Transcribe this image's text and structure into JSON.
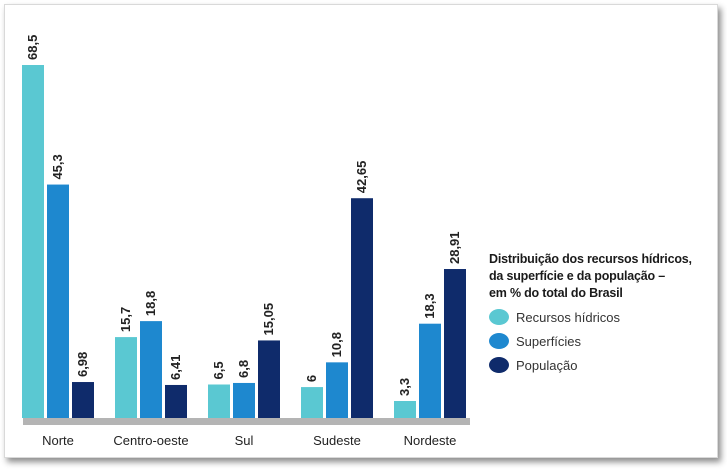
{
  "colors": {
    "recursos": "#5ac8d2",
    "superficies": "#1e88cf",
    "populacao": "#0f2b6b",
    "baseline": "#b4b4b4"
  },
  "legend": {
    "title_lines": [
      "Distribuição dos recursos hídricos,",
      "da superfície e da população –",
      "em % do total do Brasil"
    ],
    "items": [
      {
        "label": "Recursos hídricos",
        "color": "#5ac8d2"
      },
      {
        "label": "Superfícies",
        "color": "#1e88cf"
      },
      {
        "label": "População",
        "color": "#0f2b6b"
      }
    ]
  },
  "chart_data": {
    "type": "bar",
    "categories": [
      "Norte",
      "Centro-oeste",
      "Sul",
      "Sudeste",
      "Nordeste"
    ],
    "series": [
      {
        "name": "Recursos hídricos",
        "values": [
          68.5,
          15.7,
          6.5,
          6,
          3.3
        ],
        "labels": [
          "68,5",
          "15,7",
          "6,5",
          "6",
          "3,3"
        ],
        "color": "#5ac8d2"
      },
      {
        "name": "Superfícies",
        "values": [
          45.3,
          18.8,
          6.8,
          10.8,
          18.3
        ],
        "labels": [
          "45,3",
          "18,8",
          "6,8",
          "10,8",
          "18,3"
        ],
        "color": "#1e88cf"
      },
      {
        "name": "População",
        "values": [
          6.98,
          6.41,
          15.05,
          42.65,
          28.91
        ],
        "labels": [
          "6,98",
          "6,41",
          "15,05",
          "42,65",
          "28,91"
        ],
        "color": "#0f2b6b"
      }
    ],
    "ylim": [
      0,
      68.5
    ],
    "grid": false,
    "legend_position": "right"
  }
}
